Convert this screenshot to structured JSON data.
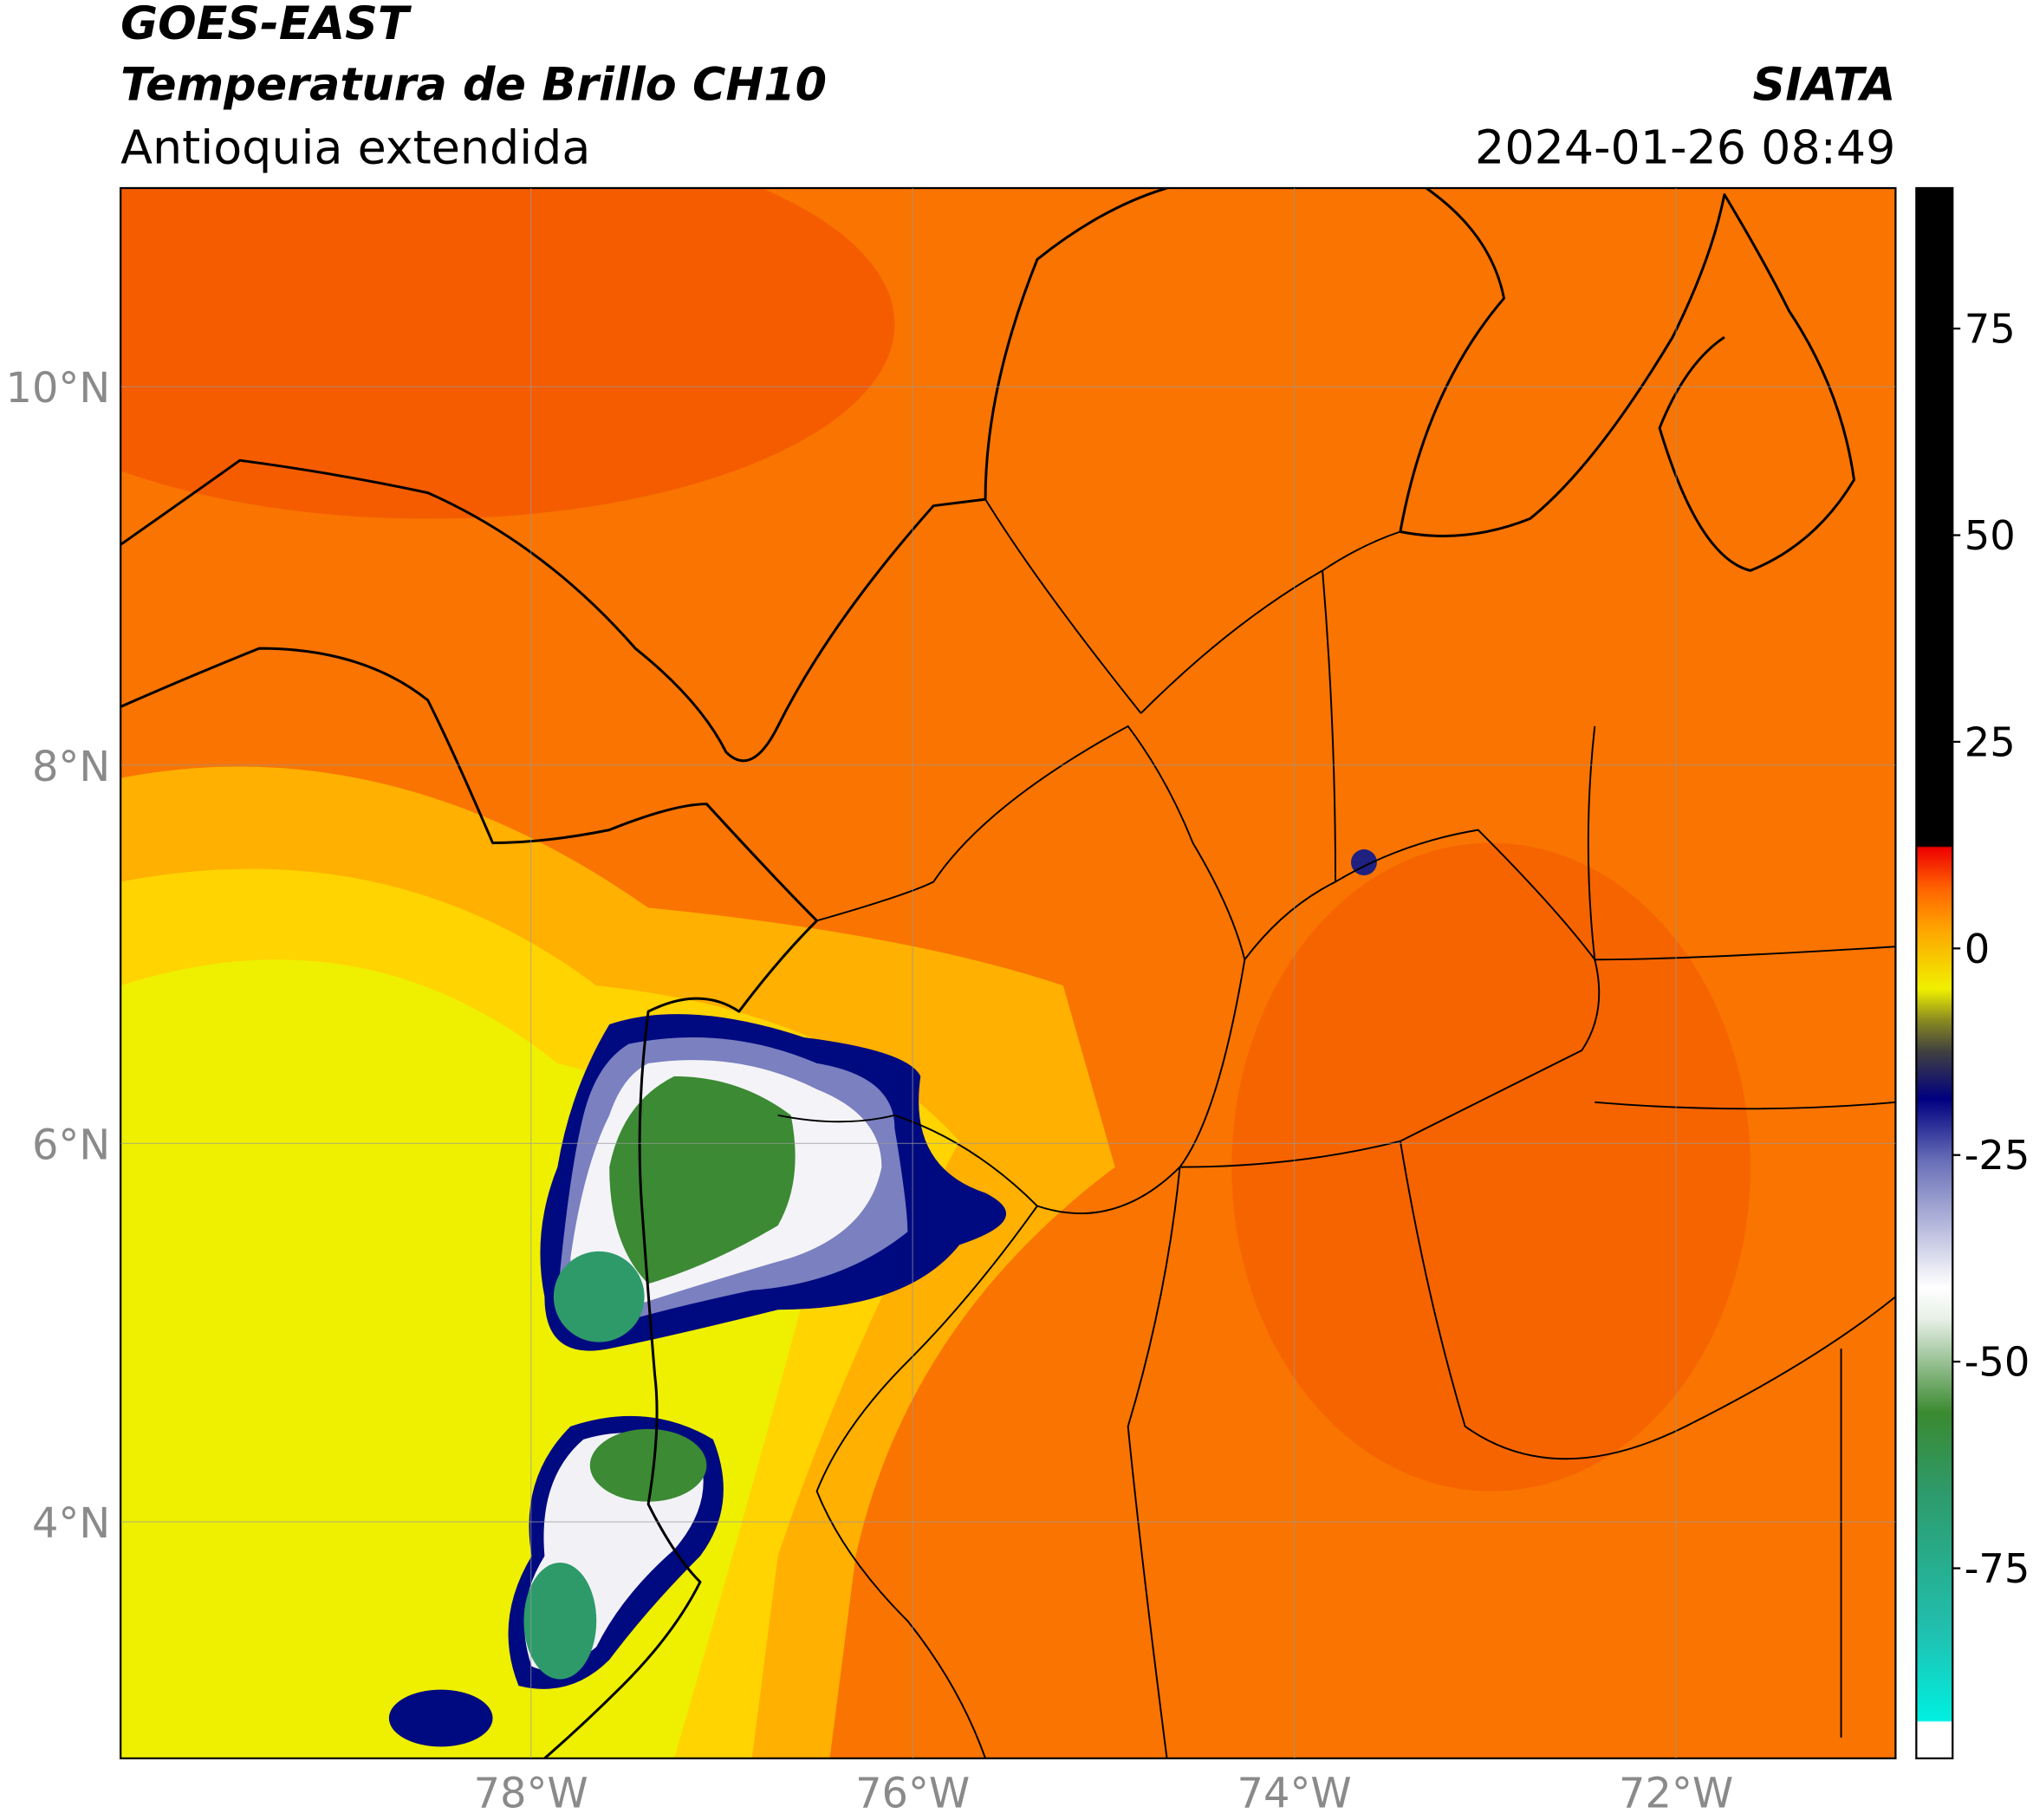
{
  "header": {
    "title": "GOES-EAST",
    "subtitle": "Temperatura de Brillo CH10",
    "region": "Antioquia extendida",
    "source": "SIATA",
    "datetime": "2024-01-26 08:49"
  },
  "map": {
    "xlim": [
      -80.15,
      -70.85
    ],
    "ylim": [
      2.75,
      11.05
    ],
    "xticks": [
      {
        "value": -78,
        "label": "78°W"
      },
      {
        "value": -76,
        "label": "76°W"
      },
      {
        "value": -74,
        "label": "74°W"
      },
      {
        "value": -72,
        "label": "72°W"
      }
    ],
    "yticks": [
      {
        "value": 4,
        "label": "4°N"
      },
      {
        "value": 6,
        "label": "6°N"
      },
      {
        "value": 8,
        "label": "8°N"
      },
      {
        "value": 10,
        "label": "10°N"
      }
    ],
    "grid": true,
    "colorbar": {
      "clim": [
        -98,
        92
      ],
      "ticks": [
        -75,
        -50,
        -25,
        0,
        25,
        50,
        75
      ]
    }
  }
}
